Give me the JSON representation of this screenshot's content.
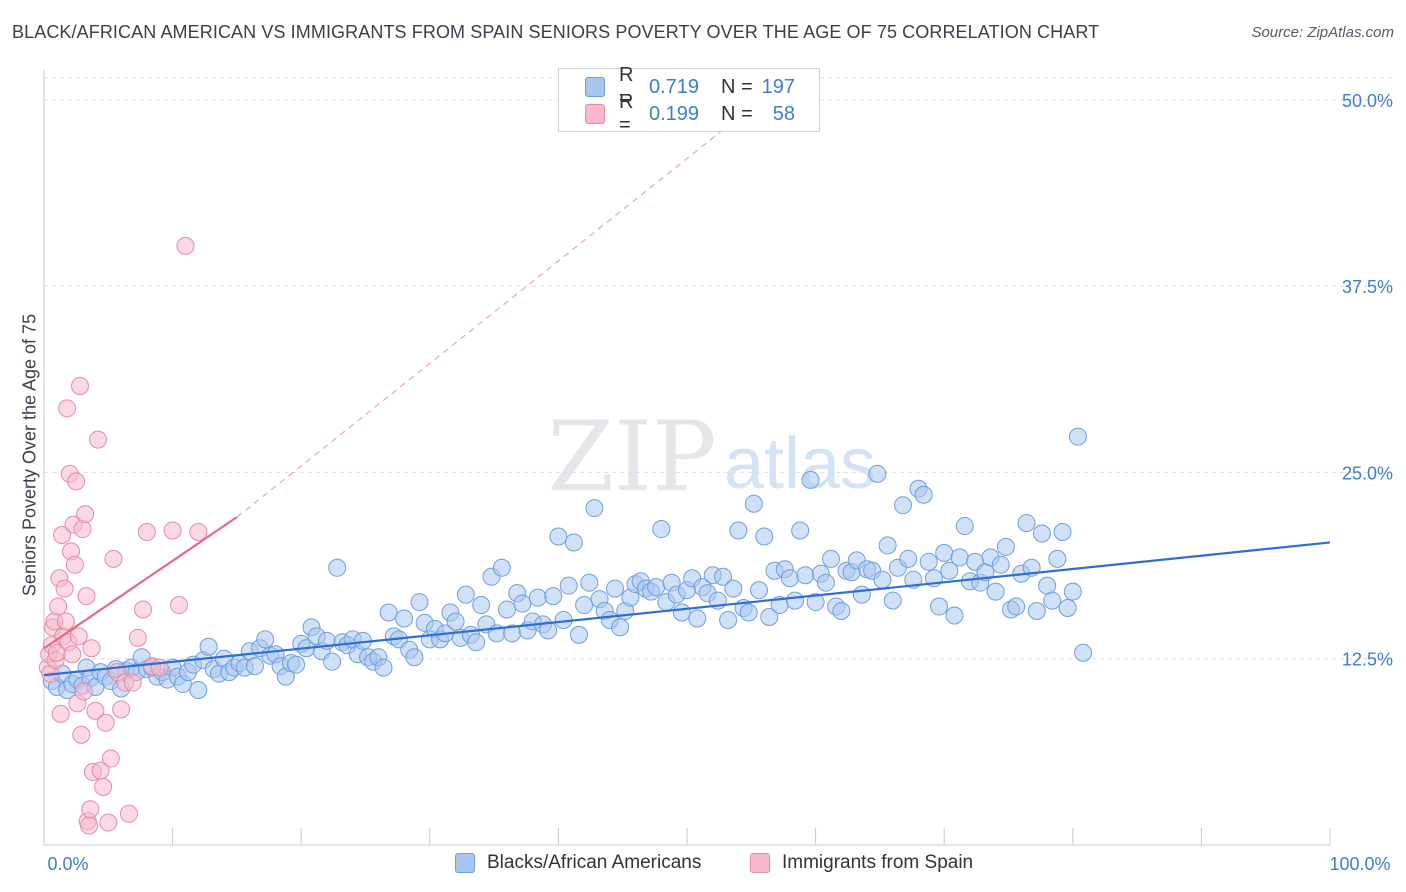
{
  "title": "BLACK/AFRICAN AMERICAN VS IMMIGRANTS FROM SPAIN SENIORS POVERTY OVER THE AGE OF 75 CORRELATION CHART",
  "source": "Source: ZipAtlas.com",
  "watermark": {
    "zip": "ZIP",
    "atlas": "atlas"
  },
  "legend": {
    "r_label": "R =",
    "n_label": "N =",
    "rows": [
      {
        "series": "Blacks/African Americans",
        "r": "0.719",
        "n": "197",
        "color": "#a9c6f0"
      },
      {
        "series": "Immigrants from Spain",
        "r": "0.199",
        "n": "58",
        "color": "#f6b9cc"
      }
    ]
  },
  "chart_data": {
    "type": "scatter",
    "xlabel": "",
    "ylabel": "Seniors Poverty Over the Age of 75",
    "xlim": [
      0,
      100
    ],
    "ylim": [
      0,
      52
    ],
    "x_tick_labels": [
      "0.0%",
      "100.0%"
    ],
    "y_ticks": [
      12.5,
      25.0,
      37.5,
      50.0
    ],
    "y_tick_labels": [
      "12.5%",
      "25.0%",
      "37.5%",
      "50.0%"
    ],
    "grid": "horizontal dashed",
    "legend_position": "top-center",
    "series": [
      {
        "name": "Blacks/African Americans",
        "color": "#a9c6f0",
        "stroke": "#6f9fe0",
        "trend": {
          "x0": 0,
          "y0": 11.4,
          "x1": 100,
          "y1": 20.3,
          "color": "#2e6fd1"
        },
        "points": [
          [
            0.6,
            11.0
          ],
          [
            1.0,
            10.6
          ],
          [
            1.4,
            11.5
          ],
          [
            1.8,
            10.4
          ],
          [
            2.2,
            10.8
          ],
          [
            2.6,
            11.1
          ],
          [
            3.0,
            10.7
          ],
          [
            3.3,
            11.9
          ],
          [
            3.6,
            11.2
          ],
          [
            4.0,
            10.6
          ],
          [
            4.4,
            11.6
          ],
          [
            4.8,
            11.3
          ],
          [
            5.2,
            11.0
          ],
          [
            5.6,
            11.8
          ],
          [
            6.0,
            10.5
          ],
          [
            6.4,
            11.7
          ],
          [
            6.8,
            11.9
          ],
          [
            7.2,
            11.6
          ],
          [
            7.6,
            12.6
          ],
          [
            8.0,
            11.8
          ],
          [
            8.4,
            11.9
          ],
          [
            8.8,
            11.3
          ],
          [
            9.2,
            11.6
          ],
          [
            9.6,
            11.1
          ],
          [
            10.0,
            11.9
          ],
          [
            10.4,
            11.3
          ],
          [
            10.8,
            10.8
          ],
          [
            11.2,
            11.6
          ],
          [
            11.6,
            12.1
          ],
          [
            12.0,
            10.4
          ],
          [
            12.4,
            12.4
          ],
          [
            12.8,
            13.3
          ],
          [
            13.2,
            11.8
          ],
          [
            13.6,
            11.5
          ],
          [
            14.0,
            12.5
          ],
          [
            14.4,
            11.6
          ],
          [
            14.8,
            11.9
          ],
          [
            15.2,
            12.2
          ],
          [
            15.6,
            11.9
          ],
          [
            16.0,
            13.0
          ],
          [
            16.4,
            12.0
          ],
          [
            16.8,
            13.2
          ],
          [
            17.2,
            13.8
          ],
          [
            17.6,
            12.7
          ],
          [
            18.0,
            12.8
          ],
          [
            18.4,
            12.0
          ],
          [
            18.8,
            11.3
          ],
          [
            19.2,
            12.2
          ],
          [
            19.6,
            12.1
          ],
          [
            20.0,
            13.5
          ],
          [
            20.4,
            13.2
          ],
          [
            20.8,
            14.6
          ],
          [
            21.2,
            14.0
          ],
          [
            21.6,
            13.0
          ],
          [
            22.0,
            13.7
          ],
          [
            22.4,
            12.3
          ],
          [
            22.8,
            18.6
          ],
          [
            23.2,
            13.6
          ],
          [
            23.6,
            13.4
          ],
          [
            24.0,
            13.8
          ],
          [
            24.4,
            12.8
          ],
          [
            24.8,
            13.7
          ],
          [
            25.2,
            12.6
          ],
          [
            25.6,
            12.3
          ],
          [
            26.0,
            12.6
          ],
          [
            26.4,
            11.9
          ],
          [
            26.8,
            15.6
          ],
          [
            27.2,
            14.0
          ],
          [
            27.6,
            13.8
          ],
          [
            28.0,
            15.2
          ],
          [
            28.4,
            13.1
          ],
          [
            28.8,
            12.6
          ],
          [
            29.2,
            16.3
          ],
          [
            29.6,
            14.9
          ],
          [
            30.0,
            13.8
          ],
          [
            30.4,
            14.5
          ],
          [
            30.8,
            13.8
          ],
          [
            31.2,
            14.2
          ],
          [
            31.6,
            15.6
          ],
          [
            32.0,
            15.0
          ],
          [
            32.4,
            13.9
          ],
          [
            32.8,
            16.8
          ],
          [
            33.2,
            14.1
          ],
          [
            33.6,
            13.6
          ],
          [
            34.0,
            16.1
          ],
          [
            34.4,
            14.8
          ],
          [
            34.8,
            18.0
          ],
          [
            35.2,
            14.2
          ],
          [
            35.6,
            18.6
          ],
          [
            36.0,
            15.8
          ],
          [
            36.4,
            14.2
          ],
          [
            36.8,
            16.9
          ],
          [
            37.2,
            16.2
          ],
          [
            37.6,
            14.4
          ],
          [
            38.0,
            15.0
          ],
          [
            38.4,
            16.6
          ],
          [
            38.8,
            14.8
          ],
          [
            39.2,
            14.4
          ],
          [
            39.6,
            16.7
          ],
          [
            40.0,
            20.7
          ],
          [
            40.4,
            15.1
          ],
          [
            40.8,
            17.4
          ],
          [
            41.2,
            20.3
          ],
          [
            41.6,
            14.1
          ],
          [
            42.0,
            16.1
          ],
          [
            42.4,
            17.6
          ],
          [
            42.8,
            22.6
          ],
          [
            43.2,
            16.5
          ],
          [
            43.6,
            15.7
          ],
          [
            44.0,
            15.1
          ],
          [
            44.4,
            17.2
          ],
          [
            44.8,
            14.6
          ],
          [
            45.2,
            15.7
          ],
          [
            45.6,
            16.6
          ],
          [
            46.0,
            17.5
          ],
          [
            46.4,
            17.7
          ],
          [
            46.8,
            17.2
          ],
          [
            47.2,
            17.0
          ],
          [
            47.6,
            17.3
          ],
          [
            48.0,
            21.2
          ],
          [
            48.4,
            16.3
          ],
          [
            48.8,
            17.6
          ],
          [
            49.2,
            16.8
          ],
          [
            49.6,
            15.6
          ],
          [
            50.0,
            17.1
          ],
          [
            50.4,
            17.9
          ],
          [
            50.8,
            15.2
          ],
          [
            51.2,
            17.3
          ],
          [
            51.6,
            16.9
          ],
          [
            52.0,
            18.1
          ],
          [
            52.4,
            16.4
          ],
          [
            52.8,
            18.0
          ],
          [
            53.2,
            15.1
          ],
          [
            53.6,
            17.2
          ],
          [
            54.0,
            21.1
          ],
          [
            54.4,
            15.9
          ],
          [
            54.8,
            15.6
          ],
          [
            55.2,
            22.9
          ],
          [
            55.6,
            17.1
          ],
          [
            56.0,
            20.7
          ],
          [
            56.4,
            15.3
          ],
          [
            56.8,
            18.4
          ],
          [
            57.2,
            16.1
          ],
          [
            57.6,
            18.5
          ],
          [
            58.0,
            17.9
          ],
          [
            58.4,
            16.4
          ],
          [
            58.8,
            21.1
          ],
          [
            59.2,
            18.1
          ],
          [
            59.6,
            24.5
          ],
          [
            60.0,
            16.3
          ],
          [
            60.4,
            18.2
          ],
          [
            60.8,
            17.6
          ],
          [
            61.2,
            19.2
          ],
          [
            61.6,
            16.0
          ],
          [
            62.0,
            15.7
          ],
          [
            62.4,
            18.4
          ],
          [
            62.8,
            18.3
          ],
          [
            63.2,
            19.1
          ],
          [
            63.6,
            16.8
          ],
          [
            64.0,
            18.5
          ],
          [
            64.4,
            18.4
          ],
          [
            64.8,
            24.9
          ],
          [
            65.2,
            17.8
          ],
          [
            65.6,
            20.1
          ],
          [
            66.0,
            16.4
          ],
          [
            66.4,
            18.6
          ],
          [
            66.8,
            22.8
          ],
          [
            67.2,
            19.2
          ],
          [
            67.6,
            17.8
          ],
          [
            68.0,
            23.9
          ],
          [
            68.4,
            23.5
          ],
          [
            68.8,
            19.0
          ],
          [
            69.2,
            17.9
          ],
          [
            69.6,
            16.0
          ],
          [
            70.0,
            19.6
          ],
          [
            70.4,
            18.4
          ],
          [
            70.8,
            15.4
          ],
          [
            71.2,
            19.3
          ],
          [
            71.6,
            21.4
          ],
          [
            72.0,
            17.7
          ],
          [
            72.4,
            19.0
          ],
          [
            72.8,
            17.6
          ],
          [
            73.2,
            18.3
          ],
          [
            73.6,
            19.3
          ],
          [
            74.0,
            17.0
          ],
          [
            74.4,
            18.8
          ],
          [
            74.8,
            20.0
          ],
          [
            75.2,
            15.8
          ],
          [
            75.6,
            16.0
          ],
          [
            76.0,
            18.2
          ],
          [
            76.4,
            21.6
          ],
          [
            76.8,
            18.6
          ],
          [
            77.2,
            15.7
          ],
          [
            77.6,
            20.9
          ],
          [
            78.0,
            17.4
          ],
          [
            78.4,
            16.4
          ],
          [
            78.8,
            19.2
          ],
          [
            79.2,
            21.0
          ],
          [
            79.6,
            15.9
          ],
          [
            80.0,
            17.0
          ],
          [
            80.4,
            27.4
          ],
          [
            80.8,
            12.9
          ]
        ]
      },
      {
        "name": "Immigrants from Spain",
        "color": "#f6b9cc",
        "stroke": "#e88aa6",
        "trend": {
          "x0": 0,
          "y0": 13.2,
          "x1": 15,
          "y1": 22.0,
          "color": "#e8648c",
          "dashed_to": {
            "x": 55,
            "y": 49.5
          }
        },
        "points": [
          [
            0.3,
            11.9
          ],
          [
            0.4,
            12.8
          ],
          [
            0.5,
            11.5
          ],
          [
            0.6,
            13.4
          ],
          [
            0.7,
            14.6
          ],
          [
            0.8,
            15.0
          ],
          [
            0.9,
            12.4
          ],
          [
            1.0,
            12.9
          ],
          [
            1.1,
            16.0
          ],
          [
            1.2,
            17.9
          ],
          [
            1.3,
            8.8
          ],
          [
            1.4,
            20.8
          ],
          [
            1.5,
            14.0
          ],
          [
            1.6,
            17.2
          ],
          [
            1.7,
            15.0
          ],
          [
            1.8,
            29.3
          ],
          [
            1.9,
            13.6
          ],
          [
            2.0,
            24.9
          ],
          [
            2.1,
            19.7
          ],
          [
            2.2,
            12.8
          ],
          [
            2.3,
            21.5
          ],
          [
            2.4,
            18.8
          ],
          [
            2.5,
            24.4
          ],
          [
            2.6,
            9.5
          ],
          [
            2.7,
            14.0
          ],
          [
            2.8,
            30.8
          ],
          [
            2.9,
            7.4
          ],
          [
            3.0,
            21.2
          ],
          [
            3.1,
            10.3
          ],
          [
            3.2,
            22.2
          ],
          [
            3.3,
            16.7
          ],
          [
            3.4,
            1.6
          ],
          [
            3.5,
            1.3
          ],
          [
            3.6,
            2.4
          ],
          [
            3.7,
            13.2
          ],
          [
            3.8,
            4.9
          ],
          [
            4.0,
            9.0
          ],
          [
            4.2,
            27.2
          ],
          [
            4.4,
            5.0
          ],
          [
            4.6,
            3.9
          ],
          [
            4.8,
            8.2
          ],
          [
            5.0,
            1.5
          ],
          [
            5.2,
            5.8
          ],
          [
            5.4,
            19.2
          ],
          [
            5.7,
            11.6
          ],
          [
            6.0,
            9.1
          ],
          [
            6.3,
            10.9
          ],
          [
            6.6,
            2.1
          ],
          [
            6.9,
            10.9
          ],
          [
            7.3,
            13.9
          ],
          [
            7.7,
            15.8
          ],
          [
            8.0,
            21.0
          ],
          [
            8.4,
            12.0
          ],
          [
            9.0,
            11.9
          ],
          [
            10.0,
            21.1
          ],
          [
            10.5,
            16.1
          ],
          [
            11.0,
            40.2
          ],
          [
            12.0,
            21.0
          ]
        ]
      }
    ]
  },
  "bottom_legend": [
    "Blacks/African Americans",
    "Immigrants from Spain"
  ]
}
